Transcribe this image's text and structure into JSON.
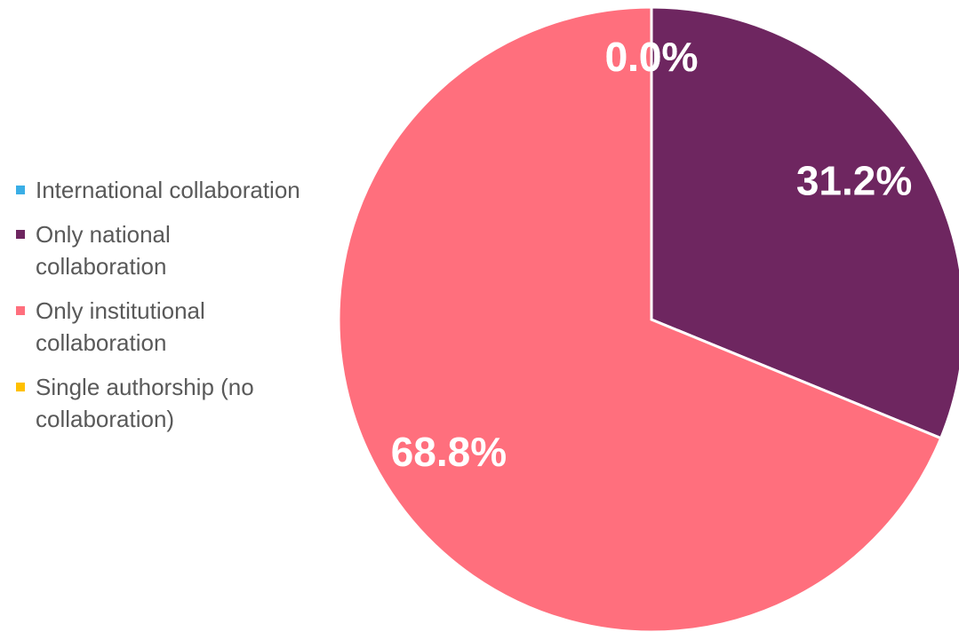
{
  "chart_data": {
    "type": "pie",
    "categories": [
      "International collaboration",
      "Only national collaboration",
      "Only institutional collaboration",
      "Single authorship (no collaboration)"
    ],
    "values": [
      0.0,
      31.2,
      68.8,
      0.0
    ],
    "value_labels": [
      "0.0%",
      "31.2%",
      "68.8%",
      "0.0%"
    ],
    "colors": [
      "#3aaee6",
      "#6e2660",
      "#ff6f7d",
      "#ffc000"
    ],
    "legend": "left"
  }
}
